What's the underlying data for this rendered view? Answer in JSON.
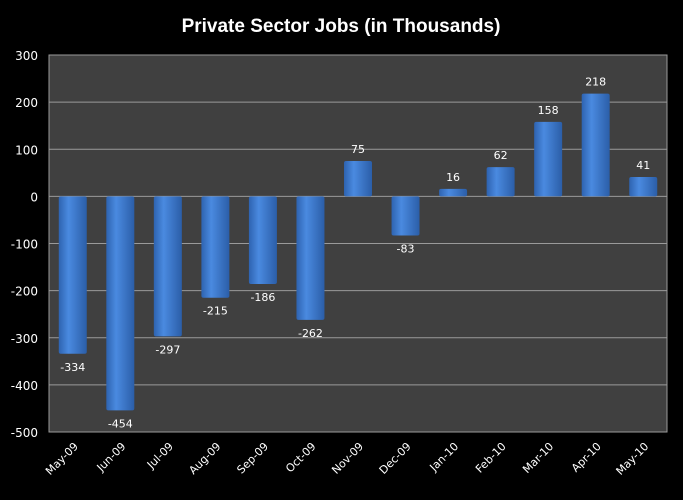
{
  "chart_data": {
    "type": "bar",
    "title": "Private Sector Jobs (in Thousands)",
    "xlabel": "",
    "ylabel": "",
    "categories": [
      "May-09",
      "Jun-09",
      "Jul-09",
      "Aug-09",
      "Sep-09",
      "Oct-09",
      "Nov-09",
      "Dec-09",
      "Jan-10",
      "Feb-10",
      "Mar-10",
      "Apr-10",
      "May-10"
    ],
    "values": [
      -334,
      -454,
      -297,
      -215,
      -186,
      -262,
      75,
      -83,
      16,
      62,
      158,
      218,
      41
    ],
    "ylim": [
      -500,
      300
    ],
    "yticks": [
      300,
      200,
      100,
      0,
      -100,
      -200,
      -300,
      -400,
      -500
    ],
    "grid": true,
    "legend": "none",
    "data_labels": true,
    "colors": {
      "bar": "#3f7fd6",
      "plot_background": "#404040",
      "background": "#000000",
      "grid": "#9a9a9a"
    }
  }
}
